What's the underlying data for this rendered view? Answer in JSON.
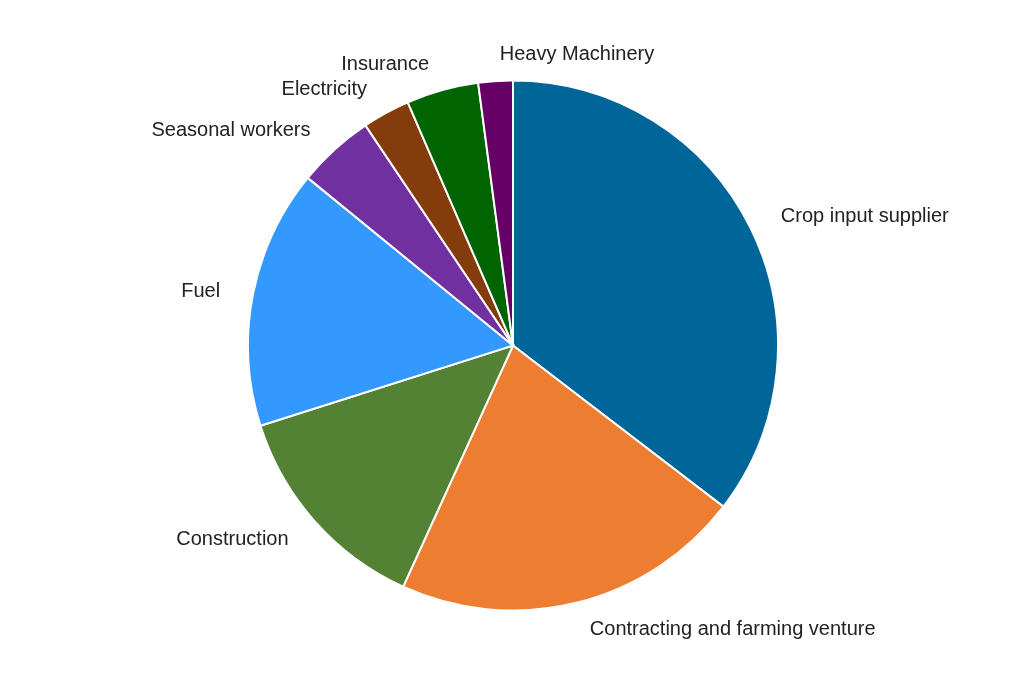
{
  "chart_data": {
    "type": "pie",
    "categories": [
      "Crop input supplier",
      "Contracting and farming venture",
      "Construction",
      "Fuel",
      "Seasonal workers",
      "Electricity",
      "Insurance",
      "Heavy Machinery"
    ],
    "values": [
      35.4,
      21.4,
      13.3,
      15.8,
      4.7,
      2.9,
      4.4,
      2.1
    ],
    "colors": [
      "#00669a",
      "#ed7d31",
      "#548235",
      "#3399ff",
      "#7030a0",
      "#843c0c",
      "#006400",
      "#660066"
    ]
  }
}
